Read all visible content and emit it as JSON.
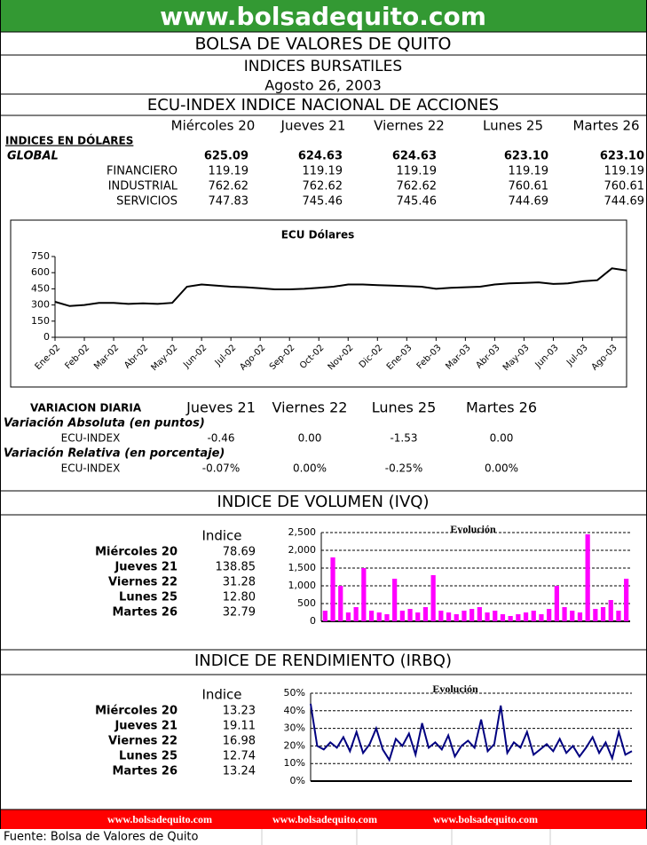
{
  "header": {
    "url": "www.bolsadequito.com",
    "exchange": "BOLSA DE VALORES DE QUITO",
    "title": "INDICES BURSATILES",
    "date": "Agosto 26, 2003"
  },
  "ecu_index": {
    "title": "ECU-INDEX  INDICE NACIONAL DE ACCIONES",
    "days": [
      "Miércoles 20",
      "Jueves 21",
      "Viernes 22",
      "Lunes 25",
      "Martes 26"
    ],
    "section": "INDICES EN DÓLARES",
    "rows": [
      {
        "label": "GLOBAL",
        "values": [
          "625.09",
          "624.63",
          "624.63",
          "623.10",
          "623.10"
        ]
      },
      {
        "label": "FINANCIERO",
        "values": [
          "119.19",
          "119.19",
          "119.19",
          "119.19",
          "119.19"
        ]
      },
      {
        "label": "INDUSTRIAL",
        "values": [
          "762.62",
          "762.62",
          "762.62",
          "760.61",
          "760.61"
        ]
      },
      {
        "label": "SERVICIOS",
        "values": [
          "747.83",
          "745.46",
          "745.46",
          "744.69",
          "744.69"
        ]
      }
    ]
  },
  "variation": {
    "title": "VARIACION DIARIA",
    "days": [
      "Jueves 21",
      "Viernes 22",
      "Lunes 25",
      "Martes 26"
    ],
    "absolute": {
      "label": "Variación Absoluta (en puntos)",
      "row_label": "ECU-INDEX",
      "values": [
        "-0.46",
        "0.00",
        "-1.53",
        "0.00"
      ]
    },
    "relative": {
      "label": "Variación Relativa (en porcentaje)",
      "row_label": "ECU-INDEX",
      "values": [
        "-0.07%",
        "0.00%",
        "-0.25%",
        "0.00%"
      ]
    }
  },
  "ivq": {
    "title": "INDICE DE VOLUMEN (IVQ)",
    "column": "Indice",
    "rows": [
      {
        "label": "Miércoles 20",
        "value": "78.69"
      },
      {
        "label": "Jueves 21",
        "value": "138.85"
      },
      {
        "label": "Viernes 22",
        "value": "31.28"
      },
      {
        "label": "Lunes 25",
        "value": "12.80"
      },
      {
        "label": "Martes 26",
        "value": "32.79"
      }
    ]
  },
  "irbq": {
    "title": "INDICE DE RENDIMIENTO (IRBQ)",
    "column": "Indice",
    "rows": [
      {
        "label": "Miércoles 20",
        "value": "13.23"
      },
      {
        "label": "Jueves 21",
        "value": "19.11"
      },
      {
        "label": "Viernes 22",
        "value": "16.98"
      },
      {
        "label": "Lunes 25",
        "value": "12.74"
      },
      {
        "label": "Martes 26",
        "value": "13.24"
      }
    ]
  },
  "chart_data": [
    {
      "type": "line",
      "title": "ECU Dólares",
      "color": "#000000",
      "grid": false,
      "categories": [
        "Ene-02",
        null,
        "Feb-02",
        null,
        "Mar-02",
        null,
        "Abr-02",
        null,
        "May-02",
        null,
        "Jun-02",
        null,
        "Jul-02",
        null,
        "Ago-02",
        null,
        "Sep-02",
        null,
        "Oct-02",
        null,
        "Nov-02",
        null,
        "Dic-02",
        null,
        "Ene-03",
        null,
        "Feb-03",
        null,
        "Mar-03",
        null,
        "Abr-03",
        null,
        "May-03",
        null,
        "Jun-03",
        null,
        "Jul-03",
        null,
        "Ago-03",
        null
      ],
      "values": [
        330,
        290,
        300,
        320,
        320,
        310,
        315,
        310,
        320,
        470,
        490,
        480,
        470,
        465,
        455,
        445,
        445,
        450,
        460,
        470,
        490,
        490,
        485,
        480,
        475,
        470,
        450,
        460,
        465,
        470,
        490,
        500,
        505,
        510,
        495,
        500,
        520,
        530,
        640,
        620
      ],
      "ylim": [
        0,
        750
      ],
      "yticks": [
        0,
        150,
        300,
        450,
        600,
        750
      ]
    },
    {
      "type": "bar",
      "title": "Evolución",
      "color": "#ff00ff",
      "grid": true,
      "values": [
        300,
        1800,
        1000,
        250,
        400,
        1500,
        300,
        250,
        200,
        1200,
        300,
        350,
        250,
        400,
        1300,
        300,
        250,
        200,
        300,
        350,
        400,
        250,
        300,
        200,
        150,
        200,
        250,
        300,
        200,
        350,
        1000,
        400,
        300,
        250,
        2450,
        350,
        400,
        600,
        300,
        1200
      ],
      "ylim": [
        0,
        2500
      ],
      "yticks": [
        0,
        500,
        {
          "value": 1000,
          "label": "1,000"
        },
        {
          "value": 1500,
          "label": "1,500"
        },
        {
          "value": 2000,
          "label": "2,000"
        },
        {
          "value": 2500,
          "label": "2,500"
        }
      ]
    },
    {
      "type": "line",
      "title": "Evolución",
      "color": "#000080",
      "grid": true,
      "values": [
        44,
        20,
        18,
        22,
        19,
        25,
        17,
        28,
        16,
        21,
        30,
        18,
        12,
        24,
        20,
        27,
        15,
        33,
        19,
        22,
        18,
        26,
        14,
        20,
        23,
        19,
        35,
        17,
        21,
        43,
        16,
        22,
        19,
        28,
        15,
        18,
        21,
        17,
        24,
        16,
        20,
        14,
        19,
        25,
        16,
        22,
        13,
        28,
        15,
        17
      ],
      "ylim": [
        0,
        50
      ],
      "yticks": [
        {
          "value": 0,
          "label": "0%"
        },
        {
          "value": 10,
          "label": "10%"
        },
        {
          "value": 20,
          "label": "20%"
        },
        {
          "value": 30,
          "label": "30%"
        },
        {
          "value": 40,
          "label": "40%"
        },
        {
          "value": 50,
          "label": "50%"
        }
      ]
    }
  ],
  "footer": {
    "links": [
      "www.bolsadequito.com",
      "www.bolsadequito.com",
      "www.bolsadequito.com"
    ],
    "source": "Fuente: Bolsa de Valores de Quito"
  }
}
